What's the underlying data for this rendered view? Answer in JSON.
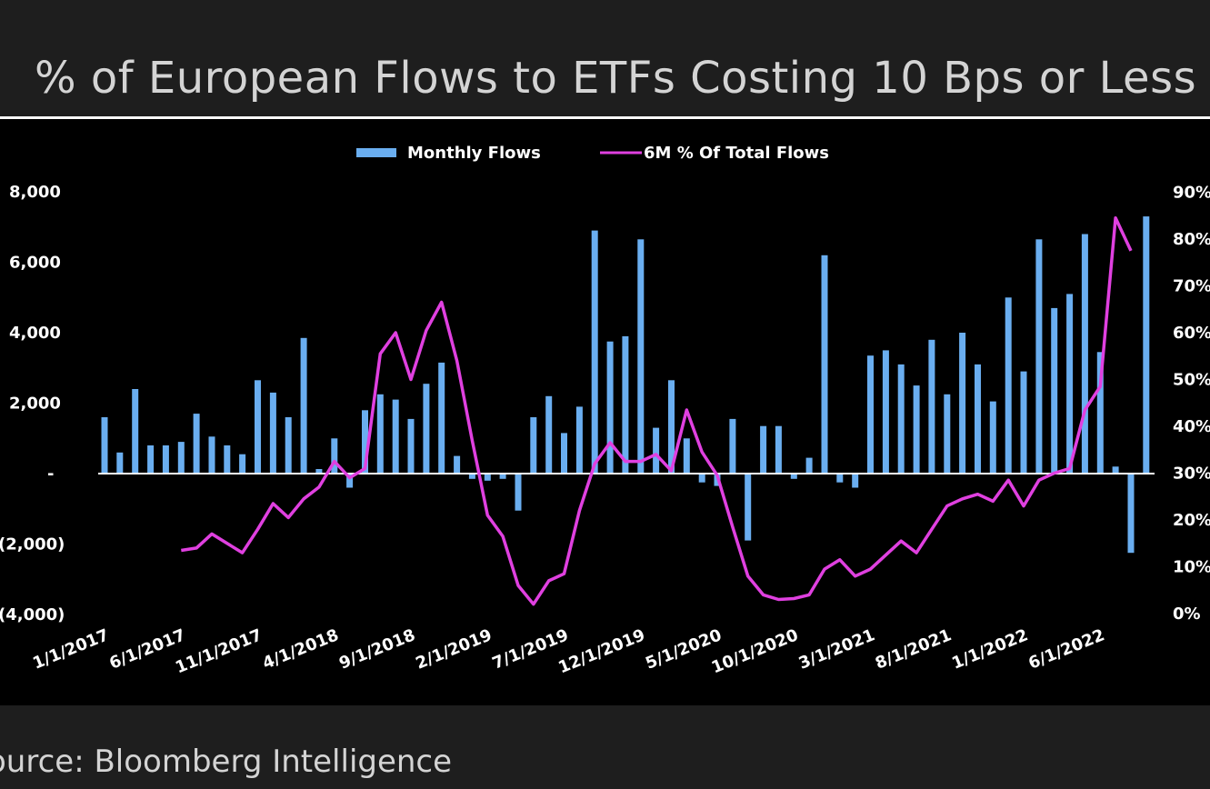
{
  "title": "% of European Flows to ETFs Costing 10 Bps or Less",
  "source": "ource: Bloomberg Intelligence",
  "colors": {
    "bars": "#6aaef0",
    "line": "#e040e0",
    "background": "#000000"
  },
  "chart_data": {
    "type": "bar",
    "legend": {
      "placement": "top-center",
      "items": [
        "Monthly Flows",
        "6M % Of Total Flows"
      ]
    },
    "categories": [
      "1/1/2017",
      "2/1/2017",
      "3/1/2017",
      "4/1/2017",
      "5/1/2017",
      "6/1/2017",
      "7/1/2017",
      "8/1/2017",
      "9/1/2017",
      "10/1/2017",
      "11/1/2017",
      "12/1/2017",
      "1/1/2018",
      "2/1/2018",
      "3/1/2018",
      "4/1/2018",
      "5/1/2018",
      "6/1/2018",
      "7/1/2018",
      "8/1/2018",
      "9/1/2018",
      "10/1/2018",
      "11/1/2018",
      "12/1/2018",
      "1/1/2019",
      "2/1/2019",
      "3/1/2019",
      "4/1/2019",
      "5/1/2019",
      "6/1/2019",
      "7/1/2019",
      "8/1/2019",
      "9/1/2019",
      "10/1/2019",
      "11/1/2019",
      "12/1/2019",
      "1/1/2020",
      "2/1/2020",
      "3/1/2020",
      "4/1/2020",
      "5/1/2020",
      "6/1/2020",
      "7/1/2020",
      "8/1/2020",
      "9/1/2020",
      "10/1/2020",
      "11/1/2020",
      "12/1/2020",
      "1/1/2021",
      "2/1/2021",
      "3/1/2021",
      "4/1/2021",
      "5/1/2021",
      "6/1/2021",
      "7/1/2021",
      "8/1/2021",
      "9/1/2021",
      "10/1/2021",
      "11/1/2021",
      "12/1/2021",
      "1/1/2022",
      "2/1/2022",
      "3/1/2022",
      "4/1/2022",
      "5/1/2022",
      "6/1/2022",
      "7/1/2022",
      "8/1/2022",
      "9/1/2022",
      "10/1/2022"
    ],
    "x_tick_labels": [
      "1/1/2017",
      "6/1/2017",
      "11/1/2017",
      "4/1/2018",
      "9/1/2018",
      "2/1/2019",
      "7/1/2019",
      "12/1/2019",
      "5/1/2020",
      "10/1/2020",
      "3/1/2021",
      "8/1/2021",
      "1/1/2022",
      "6/1/2022"
    ],
    "y_left": {
      "ticks": [
        "8,000",
        "6,000",
        "4,000",
        "2,000",
        "-",
        "(2,000)",
        "(4,000)"
      ],
      "range": [
        -4000,
        8000
      ]
    },
    "y_right": {
      "ticks": [
        "90%",
        "80%",
        "70%",
        "60%",
        "50%",
        "40%",
        "30%",
        "20%",
        "10%",
        "0%"
      ],
      "range": [
        0,
        90
      ]
    },
    "grid": false,
    "series": [
      {
        "name": "Monthly Flows",
        "type": "bar",
        "axis": "left",
        "values": [
          1600,
          600,
          2400,
          800,
          800,
          900,
          1700,
          1050,
          800,
          550,
          2650,
          2300,
          1600,
          3850,
          130,
          1000,
          -400,
          1800,
          2250,
          2100,
          1550,
          2550,
          3150,
          500,
          -150,
          -200,
          -150,
          -1050,
          1600,
          2200,
          1150,
          1900,
          6900,
          3750,
          3900,
          6650,
          1300,
          2650,
          1000,
          -250,
          -350,
          1550,
          -1900,
          1350,
          1350,
          -150,
          450,
          6200,
          -250,
          -400,
          3350,
          3500,
          3100,
          2500,
          3800,
          2250,
          4000,
          3100,
          2050,
          5000,
          2900,
          6650,
          4700,
          5100,
          6800,
          3450,
          200,
          -2250,
          7300,
          0
        ]
      },
      {
        "name": "6M % Of Total Flows",
        "type": "line",
        "axis": "right",
        "values": [
          null,
          null,
          null,
          null,
          null,
          13.5,
          14,
          17,
          15,
          13,
          18,
          23.5,
          20.5,
          24.5,
          27,
          32.5,
          29,
          31,
          55.5,
          60,
          50,
          60.5,
          66.5,
          54,
          37,
          21,
          16.5,
          6,
          2,
          7,
          8.5,
          22,
          32,
          36.5,
          32.5,
          32.5,
          34,
          30.5,
          43.5,
          34.5,
          29.5,
          18.5,
          8,
          4,
          3,
          3.2,
          4,
          9.5,
          11.5,
          8,
          9.5,
          12.5,
          15.5,
          13,
          18,
          23,
          24.5,
          25.5,
          24,
          28.5,
          23,
          28.5,
          30,
          31,
          43.5,
          48.5,
          84.5,
          77.5,
          null,
          null
        ]
      }
    ]
  }
}
